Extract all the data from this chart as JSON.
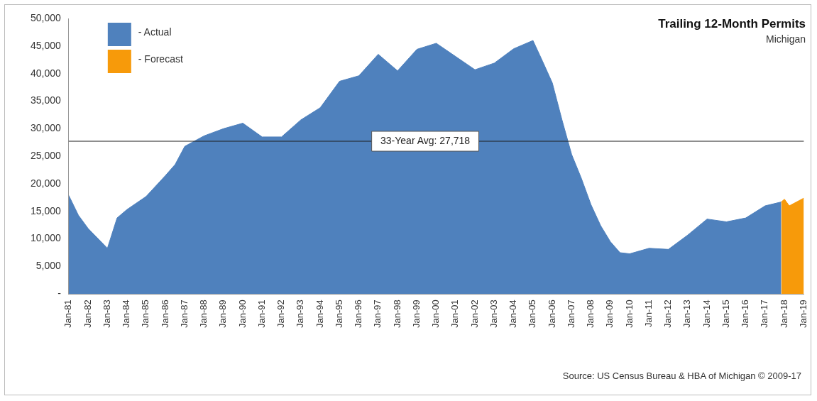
{
  "chart_data": {
    "type": "area",
    "title": "Trailing 12-Month Permits",
    "subtitle": "Michigan",
    "annotations": [
      "Source: US Census Bureau & HBA of Michigan © 2009-17"
    ],
    "series": [
      {
        "name": "- Actual",
        "color": "#4f81bd",
        "x": [
          "1981-01",
          "1981-07",
          "1982-01",
          "1983-01",
          "1983-07",
          "1984-01",
          "1985-01",
          "1986-01",
          "1986-07",
          "1987-01",
          "1988-01",
          "1989-01",
          "1990-01",
          "1991-01",
          "1992-01",
          "1993-01",
          "1994-01",
          "1995-01",
          "1996-01",
          "1997-01",
          "1998-01",
          "1999-01",
          "2000-01",
          "2001-01",
          "2002-01",
          "2003-01",
          "2004-01",
          "2005-01",
          "2005-07",
          "2006-01",
          "2006-07",
          "2007-01",
          "2007-07",
          "2008-01",
          "2008-07",
          "2009-01",
          "2009-07",
          "2010-01",
          "2011-01",
          "2012-01",
          "2013-01",
          "2014-01",
          "2015-01",
          "2016-01",
          "2017-01",
          "2017-11"
        ],
        "values": [
          17900,
          14300,
          11900,
          8300,
          13800,
          15300,
          17700,
          21500,
          23500,
          26800,
          28700,
          30000,
          31000,
          28500,
          28500,
          31600,
          33800,
          38600,
          39600,
          43500,
          40500,
          44400,
          45500,
          43100,
          40700,
          41900,
          44500,
          46000,
          42200,
          38300,
          31600,
          25300,
          21000,
          16200,
          12400,
          9500,
          7500,
          7300,
          8300,
          8100,
          10700,
          13600,
          13100,
          13800,
          16000,
          16700
        ]
      },
      {
        "name": "- Forecast",
        "color": "#f79a0a",
        "x": [
          "2017-11",
          "2018-01",
          "2018-04",
          "2019-01"
        ],
        "values": [
          16700,
          17200,
          16000,
          17400
        ]
      }
    ],
    "xlim": [
      "1981-01",
      "2019-01"
    ],
    "xticks": [
      {
        "value": "1981-01",
        "label": "Jan-81"
      },
      {
        "value": "1982-01",
        "label": "Jan-82"
      },
      {
        "value": "1983-01",
        "label": "Jan-83"
      },
      {
        "value": "1984-01",
        "label": "Jan-84"
      },
      {
        "value": "1985-01",
        "label": "Jan-85"
      },
      {
        "value": "1986-01",
        "label": "Jan-86"
      },
      {
        "value": "1987-01",
        "label": "Jan-87"
      },
      {
        "value": "1988-01",
        "label": "Jan-88"
      },
      {
        "value": "1989-01",
        "label": "Jan-89"
      },
      {
        "value": "1990-01",
        "label": "Jan-90"
      },
      {
        "value": "1991-01",
        "label": "Jan-91"
      },
      {
        "value": "1992-01",
        "label": "Jan-92"
      },
      {
        "value": "1993-01",
        "label": "Jan-93"
      },
      {
        "value": "1994-01",
        "label": "Jan-94"
      },
      {
        "value": "1995-01",
        "label": "Jan-95"
      },
      {
        "value": "1996-01",
        "label": "Jan-96"
      },
      {
        "value": "1997-01",
        "label": "Jan-97"
      },
      {
        "value": "1998-01",
        "label": "Jan-98"
      },
      {
        "value": "1999-01",
        "label": "Jan-99"
      },
      {
        "value": "2000-01",
        "label": "Jan-00"
      },
      {
        "value": "2001-01",
        "label": "Jan-01"
      },
      {
        "value": "2002-01",
        "label": "Jan-02"
      },
      {
        "value": "2003-01",
        "label": "Jan-03"
      },
      {
        "value": "2004-01",
        "label": "Jan-04"
      },
      {
        "value": "2005-01",
        "label": "Jan-05"
      },
      {
        "value": "2006-01",
        "label": "Jan-06"
      },
      {
        "value": "2007-01",
        "label": "Jan-07"
      },
      {
        "value": "2008-01",
        "label": "Jan-08"
      },
      {
        "value": "2009-01",
        "label": "Jan-09"
      },
      {
        "value": "2010-01",
        "label": "Jan-10"
      },
      {
        "value": "2011-01",
        "label": "Jan-11"
      },
      {
        "value": "2012-01",
        "label": "Jan-12"
      },
      {
        "value": "2013-01",
        "label": "Jan-13"
      },
      {
        "value": "2014-01",
        "label": "Jan-14"
      },
      {
        "value": "2015-01",
        "label": "Jan-15"
      },
      {
        "value": "2016-01",
        "label": "Jan-16"
      },
      {
        "value": "2017-01",
        "label": "Jan-17"
      },
      {
        "value": "2018-01",
        "label": "Jan-18"
      },
      {
        "value": "2019-01",
        "label": "Jan-19"
      }
    ],
    "ylim": [
      0,
      50000
    ],
    "yticks": [
      {
        "value": 0,
        "label": "-"
      },
      {
        "value": 5000,
        "label": "5,000"
      },
      {
        "value": 10000,
        "label": "10,000"
      },
      {
        "value": 15000,
        "label": "15,000"
      },
      {
        "value": 20000,
        "label": "20,000"
      },
      {
        "value": 25000,
        "label": "25,000"
      },
      {
        "value": 30000,
        "label": "30,000"
      },
      {
        "value": 35000,
        "label": "35,000"
      },
      {
        "value": 40000,
        "label": "40,000"
      },
      {
        "value": 45000,
        "label": "45,000"
      },
      {
        "value": 50000,
        "label": "50,000"
      }
    ],
    "ref_lines": [
      {
        "axis": "y",
        "value": 27718,
        "label": "33-Year Avg: 27,718",
        "color": "#1f1f1f"
      }
    ],
    "legend": "top left",
    "grid": false
  }
}
